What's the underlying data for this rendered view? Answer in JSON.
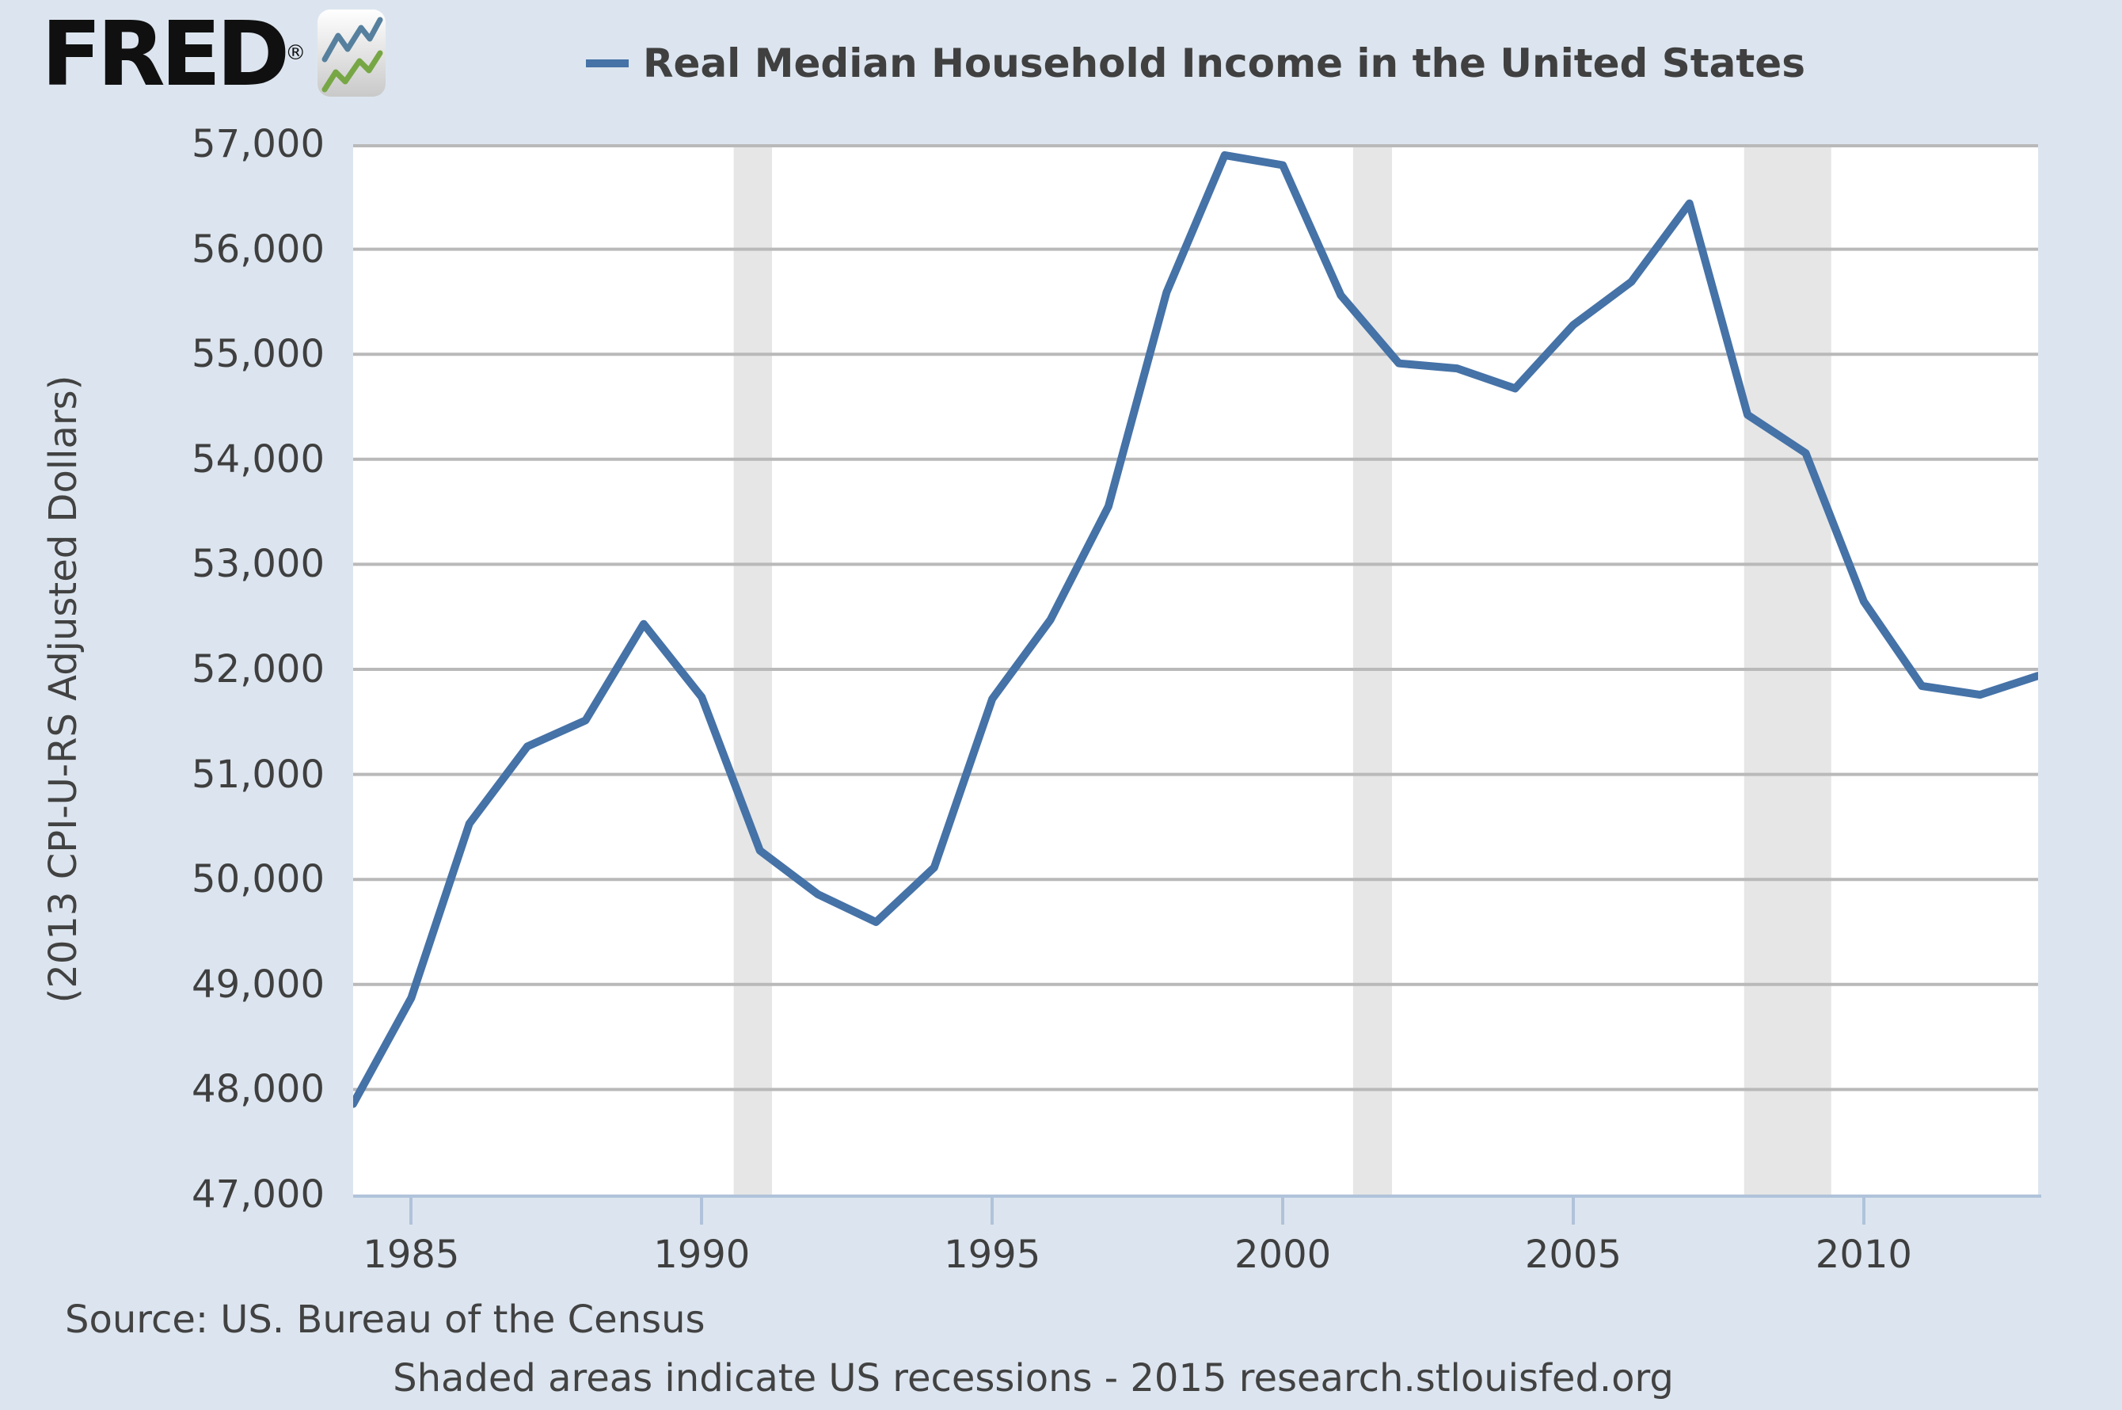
{
  "header": {
    "logo_text": "FRED",
    "logo_registered": "®",
    "logo_icon": "fred-zigzag-chart-icon"
  },
  "legend": {
    "series_label": "Real Median Household Income in the United States",
    "marker_color": "#4572a7"
  },
  "y_axis": {
    "title": "(2013 CPI-U-RS Adjusted Dollars)",
    "tick_labels": [
      "57,000",
      "56,000",
      "55,000",
      "54,000",
      "53,000",
      "52,000",
      "51,000",
      "50,000",
      "49,000",
      "48,000",
      "47,000"
    ]
  },
  "x_axis": {
    "tick_labels": [
      "1985",
      "1990",
      "1995",
      "2000",
      "2005",
      "2010"
    ]
  },
  "footer": {
    "source": "Source: US. Bureau of the Census",
    "note": "Shaded areas indicate US recessions - 2015 research.stlouisfed.org"
  },
  "colors": {
    "background": "#dce5ef",
    "plot_background": "#ffffff",
    "line": "#4572a7",
    "grid": "#b9b9b9",
    "recession_shading": "#e6e6e6",
    "axis": "#b0c3da",
    "text": "#3f3f3f",
    "logo": "#101010"
  },
  "chart_data": {
    "type": "line",
    "title": "Real Median Household Income in the United States",
    "xlabel": "",
    "ylabel": "(2013 CPI-U-RS Adjusted Dollars)",
    "legend_position": "top-center",
    "grid": "horizontal-only",
    "xlim": [
      1984,
      2013
    ],
    "ylim": [
      47000,
      57000
    ],
    "y_tick_step": 1000,
    "x_ticks": [
      1985,
      1990,
      1995,
      2000,
      2005,
      2010
    ],
    "x": [
      1984,
      1985,
      1986,
      1987,
      1988,
      1989,
      1990,
      1991,
      1992,
      1993,
      1994,
      1995,
      1996,
      1997,
      1998,
      1999,
      2000,
      2001,
      2002,
      2003,
      2004,
      2005,
      2006,
      2007,
      2008,
      2009,
      2010,
      2011,
      2012,
      2013
    ],
    "series": [
      {
        "name": "Real Median Household Income in the United States",
        "color": "#4572a7",
        "values": [
          47863,
          48872,
          50532,
          51266,
          51514,
          52432,
          51735,
          50275,
          49858,
          49594,
          50113,
          51719,
          52471,
          53551,
          55589,
          56895,
          56800,
          55562,
          54913,
          54865,
          54674,
          55278,
          55689,
          56436,
          54423,
          54059,
          52646,
          51842,
          51758,
          51939
        ]
      }
    ],
    "recession_bands": [
      [
        1990.55,
        1991.21
      ],
      [
        2001.21,
        2001.88
      ],
      [
        2007.94,
        2009.44
      ]
    ]
  }
}
